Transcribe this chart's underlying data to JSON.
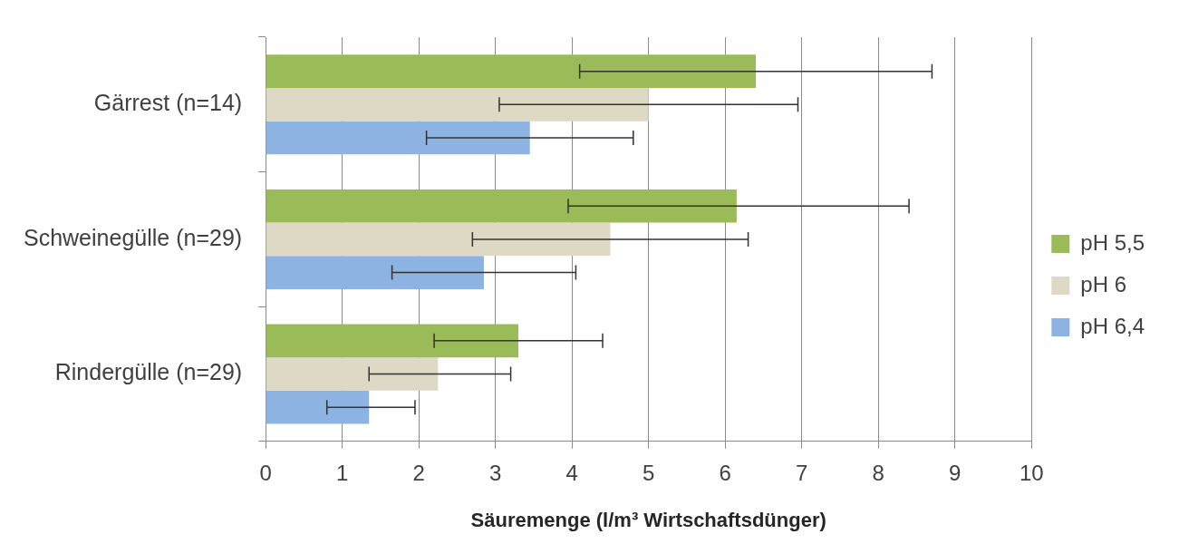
{
  "chart_data": {
    "type": "bar",
    "orientation": "horizontal",
    "xlabel": "Säuremenge (l/m³ Wirtschaftsdünger)",
    "categories": [
      "Gärrest (n=14)",
      "Schweinegülle (n=29)",
      "Rindergülle (n=29)"
    ],
    "series": [
      {
        "name": "pH 5,5",
        "color": "#9bbb59",
        "values": [
          6.4,
          6.15,
          3.3
        ],
        "errors": [
          [
            4.1,
            8.7
          ],
          [
            3.95,
            8.4
          ],
          [
            2.2,
            4.4
          ]
        ]
      },
      {
        "name": "pH 6",
        "color": "#ddd9c4",
        "values": [
          5.0,
          4.5,
          2.25
        ],
        "errors": [
          [
            3.05,
            6.95
          ],
          [
            2.7,
            6.3
          ],
          [
            1.35,
            3.2
          ]
        ]
      },
      {
        "name": "pH 6,4",
        "color": "#8db3e2",
        "values": [
          3.45,
          2.85,
          1.35
        ],
        "errors": [
          [
            2.1,
            4.8
          ],
          [
            1.65,
            4.05
          ],
          [
            0.8,
            1.95
          ]
        ]
      }
    ],
    "xlim": [
      0,
      10
    ],
    "xticks": [
      0,
      1,
      2,
      3,
      4,
      5,
      6,
      7,
      8,
      9,
      10
    ],
    "grid": "x",
    "legend": "right"
  }
}
